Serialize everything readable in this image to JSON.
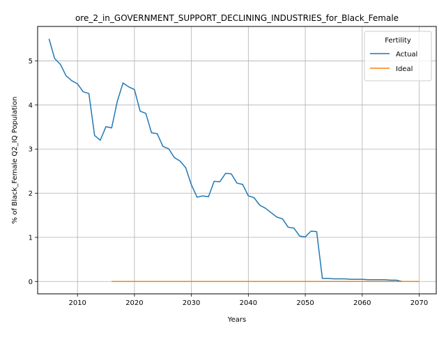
{
  "chart_data": {
    "type": "line",
    "title": "ore_2_in_GOVERNMENT_SUPPORT_DECLINING_INDUSTRIES_for_Black_Female",
    "xlabel": "Years",
    "ylabel": "% of Black_Female Q2_IQ Population",
    "xlim": [
      2003,
      2073
    ],
    "ylim": [
      -0.28,
      5.78
    ],
    "xticks": [
      2010,
      2020,
      2030,
      2040,
      2050,
      2060,
      2070
    ],
    "yticks": [
      0,
      1,
      2,
      3,
      4,
      5
    ],
    "grid": true,
    "legend": {
      "title": "Fertility",
      "placement": "top-right"
    },
    "series": [
      {
        "name": "Actual",
        "color": "#1f77b4",
        "x": [
          2005,
          2006,
          2007,
          2008,
          2009,
          2010,
          2011,
          2012,
          2013,
          2014,
          2015,
          2016,
          2017,
          2018,
          2019,
          2020,
          2021,
          2022,
          2023,
          2024,
          2025,
          2026,
          2027,
          2028,
          2029,
          2030,
          2031,
          2032,
          2033,
          2034,
          2035,
          2036,
          2037,
          2038,
          2039,
          2040,
          2041,
          2042,
          2043,
          2044,
          2045,
          2046,
          2047,
          2048,
          2049,
          2050,
          2051,
          2052,
          2053,
          2054,
          2055,
          2056,
          2057,
          2058,
          2059,
          2060,
          2061,
          2062,
          2063,
          2064,
          2065,
          2066,
          2067,
          2068,
          2069,
          2070
        ],
        "values": [
          5.5,
          5.05,
          4.92,
          4.66,
          4.55,
          4.48,
          4.3,
          4.26,
          3.31,
          3.2,
          3.51,
          3.48,
          4.09,
          4.5,
          4.41,
          4.35,
          3.86,
          3.81,
          3.37,
          3.35,
          3.06,
          3.01,
          2.81,
          2.73,
          2.58,
          2.19,
          1.91,
          1.94,
          1.92,
          2.27,
          2.26,
          2.45,
          2.44,
          2.23,
          2.2,
          1.94,
          1.9,
          1.73,
          1.66,
          1.56,
          1.46,
          1.42,
          1.23,
          1.21,
          1.03,
          1.01,
          1.14,
          1.13,
          0.07,
          0.07,
          0.06,
          0.06,
          0.06,
          0.05,
          0.05,
          0.05,
          0.04,
          0.04,
          0.04,
          0.04,
          0.03,
          0.03,
          0.0,
          0.0,
          0.0,
          0.0
        ]
      },
      {
        "name": "Ideal",
        "color": "#ff7f0e",
        "x": [
          2016,
          2070
        ],
        "values": [
          0.0,
          0.0
        ]
      }
    ]
  }
}
